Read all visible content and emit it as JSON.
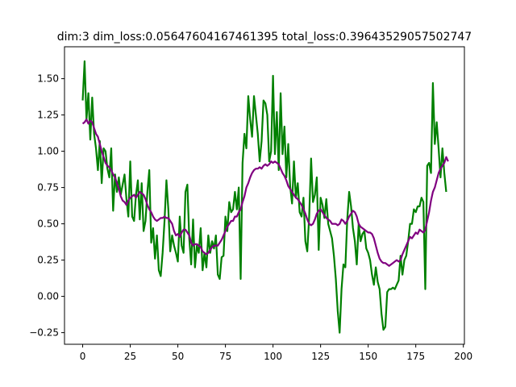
{
  "chart_data": {
    "type": "line",
    "title": "dim:3 dim_loss:0.05647604167461395 total_loss:0.39643529057502747",
    "xlabel": "",
    "ylabel": "",
    "xlim": [
      -9.55,
      200.55
    ],
    "ylim": [
      -0.33,
      1.72
    ],
    "x_ticks": [
      0,
      25,
      50,
      75,
      100,
      125,
      150,
      175,
      200
    ],
    "y_ticks": [
      -0.25,
      0.0,
      0.25,
      0.5,
      0.75,
      1.0,
      1.25,
      1.5
    ],
    "x_tick_labels": [
      "0",
      "25",
      "50",
      "75",
      "100",
      "125",
      "150",
      "175",
      "200"
    ],
    "y_tick_labels": [
      "−0.25",
      "0.00",
      "0.25",
      "0.50",
      "0.75",
      "1.00",
      "1.25",
      "1.50"
    ],
    "grid": false,
    "legend": "none",
    "series": [
      {
        "color": "#008000",
        "x_start": 0,
        "values": [
          1.35,
          1.62,
          1.22,
          1.4,
          1.08,
          1.37,
          1.12,
          1.02,
          0.87,
          1.07,
          0.78,
          1.02,
          1.0,
          0.88,
          0.82,
          1.02,
          0.59,
          0.84,
          0.72,
          0.82,
          0.7,
          0.77,
          0.84,
          0.67,
          0.55,
          0.93,
          0.55,
          0.52,
          0.7,
          0.8,
          0.53,
          0.78,
          0.45,
          0.52,
          0.72,
          0.87,
          0.37,
          0.47,
          0.26,
          0.42,
          0.18,
          0.14,
          0.3,
          0.52,
          0.8,
          0.6,
          0.31,
          0.42,
          0.35,
          0.3,
          0.24,
          0.55,
          0.35,
          0.3,
          0.72,
          0.77,
          0.4,
          0.22,
          0.53,
          0.2,
          0.35,
          0.3,
          0.47,
          0.18,
          0.3,
          0.2,
          0.42,
          0.3,
          0.38,
          0.33,
          0.42,
          0.15,
          0.12,
          0.27,
          0.28,
          0.55,
          0.45,
          0.65,
          0.58,
          0.6,
          0.72,
          0.6,
          0.75,
          0.12,
          0.92,
          1.12,
          1.02,
          1.38,
          1.22,
          1.1,
          1.38,
          1.25,
          1.12,
          0.93,
          1.07,
          1.35,
          1.33,
          1.25,
          0.93,
          1.0,
          1.52,
          0.98,
          1.27,
          0.87,
          1.4,
          0.98,
          1.17,
          0.82,
          1.05,
          0.76,
          0.64,
          0.93,
          0.68,
          0.78,
          0.58,
          0.55,
          0.68,
          0.38,
          0.31,
          0.55,
          0.95,
          0.65,
          0.7,
          0.82,
          0.32,
          0.68,
          0.63,
          0.54,
          0.67,
          0.5,
          0.45,
          0.4,
          0.28,
          0.12,
          -0.1,
          -0.25,
          0.05,
          0.22,
          0.2,
          0.53,
          0.72,
          0.62,
          0.47,
          0.38,
          0.22,
          0.5,
          0.38,
          0.43,
          0.45,
          0.33,
          0.3,
          0.25,
          0.15,
          0.08,
          0.2,
          0.1,
          0.05,
          -0.12,
          -0.23,
          -0.21,
          0.03,
          0.05,
          0.05,
          0.06,
          0.05,
          0.08,
          0.11,
          0.28,
          0.15,
          0.25,
          0.28,
          0.38,
          0.5,
          0.5,
          0.6,
          0.58,
          0.62,
          0.62,
          0.68,
          0.65,
          0.05,
          0.9,
          0.92,
          0.85,
          1.47,
          1.05,
          1.2,
          1.02,
          0.82,
          1.02,
          0.85,
          0.72
        ]
      },
      {
        "color": "#800080",
        "x_start": 0,
        "values": [
          1.19,
          1.2,
          1.22,
          1.19,
          1.21,
          1.2,
          1.16,
          1.12,
          1.1,
          1.05,
          1.0,
          0.96,
          0.92,
          0.9,
          0.89,
          0.87,
          0.84,
          0.82,
          0.78,
          0.74,
          0.69,
          0.66,
          0.65,
          0.63,
          0.66,
          0.68,
          0.69,
          0.7,
          0.68,
          0.7,
          0.72,
          0.71,
          0.7,
          0.67,
          0.63,
          0.6,
          0.58,
          0.55,
          0.53,
          0.52,
          0.53,
          0.54,
          0.54,
          0.55,
          0.54,
          0.54,
          0.52,
          0.5,
          0.45,
          0.42,
          0.43,
          0.41,
          0.44,
          0.46,
          0.46,
          0.44,
          0.42,
          0.37,
          0.35,
          0.36,
          0.36,
          0.35,
          0.34,
          0.31,
          0.3,
          0.29,
          0.3,
          0.32,
          0.34,
          0.35,
          0.35,
          0.35,
          0.37,
          0.39,
          0.42,
          0.45,
          0.48,
          0.5,
          0.52,
          0.52,
          0.55,
          0.55,
          0.58,
          0.6,
          0.65,
          0.69,
          0.75,
          0.78,
          0.82,
          0.85,
          0.87,
          0.88,
          0.88,
          0.89,
          0.88,
          0.9,
          0.91,
          0.9,
          0.91,
          0.93,
          0.92,
          0.93,
          0.92,
          0.91,
          0.88,
          0.85,
          0.83,
          0.8,
          0.76,
          0.74,
          0.72,
          0.7,
          0.68,
          0.67,
          0.65,
          0.63,
          0.6,
          0.57,
          0.53,
          0.5,
          0.49,
          0.5,
          0.53,
          0.57,
          0.59,
          0.6,
          0.58,
          0.56,
          0.54,
          0.53,
          0.52,
          0.5,
          0.5,
          0.5,
          0.49,
          0.5,
          0.53,
          0.52,
          0.5,
          0.52,
          0.55,
          0.57,
          0.59,
          0.58,
          0.55,
          0.5,
          0.48,
          0.47,
          0.46,
          0.45,
          0.44,
          0.44,
          0.43,
          0.4,
          0.35,
          0.3,
          0.26,
          0.24,
          0.23,
          0.23,
          0.22,
          0.21,
          0.22,
          0.23,
          0.24,
          0.25,
          0.24,
          0.25,
          0.29,
          0.32,
          0.35,
          0.38,
          0.41,
          0.4,
          0.42,
          0.44,
          0.43,
          0.46,
          0.45,
          0.44,
          0.46,
          0.52,
          0.58,
          0.66,
          0.72,
          0.75,
          0.8,
          0.85,
          0.88,
          0.9,
          0.92,
          0.96,
          0.93
        ]
      }
    ]
  }
}
